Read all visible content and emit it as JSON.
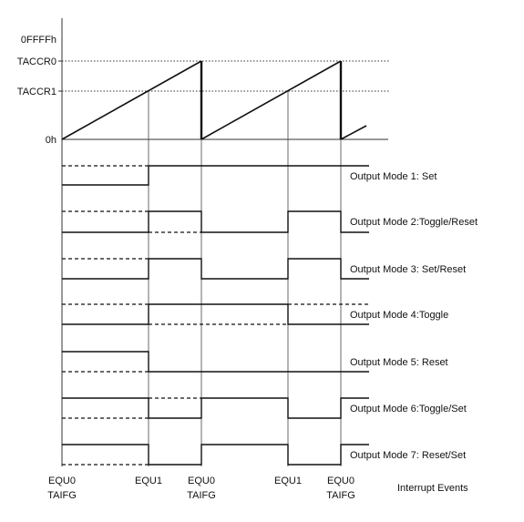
{
  "y_axis_labels": {
    "ffff": "0FFFFh",
    "taccr0": "TACCR0",
    "taccr1": "TACCR1",
    "zero": "0h"
  },
  "modes": [
    "Output Mode 1: Set",
    "Output Mode 2:Toggle/Reset",
    "Output Mode 3: Set/Reset",
    "Output Mode 4:Toggle",
    "Output Mode 5: Reset",
    "Output Mode 6:Toggle/Set",
    "Output Mode 7: Reset/Set"
  ],
  "events": {
    "e1_top": "EQU0",
    "e1_bot": "TAIFG",
    "e2": "EQU1",
    "e3_top": "EQU0",
    "e3_bot": "TAIFG",
    "e4": "EQU1",
    "e5_top": "EQU0",
    "e5_bot": "TAIFG"
  },
  "interrupt_events_label": "Interrupt Events"
}
